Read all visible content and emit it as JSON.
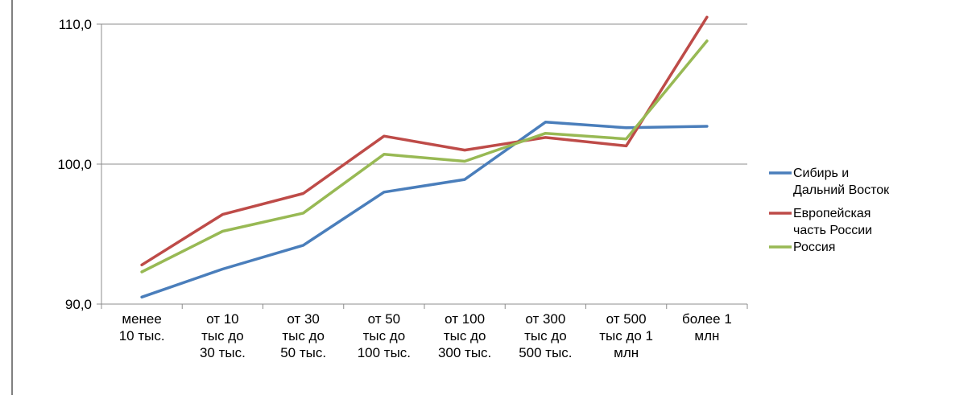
{
  "colors": {
    "background": "#ffffff",
    "grid": "#8c8c8c",
    "axis": "#8c8c8c"
  },
  "chart_data": {
    "type": "line",
    "title": "",
    "xlabel": "",
    "ylabel": "",
    "ylim": [
      90,
      110
    ],
    "yticks": [
      "90,0",
      "100,0",
      "110,0"
    ],
    "grid": "horizontal major lines",
    "legend_position": "right",
    "categories": [
      [
        "менее",
        "10 тыс."
      ],
      [
        "от 10",
        "тыс до",
        "30 тыс."
      ],
      [
        "от 30",
        "тыс до",
        "50 тыс."
      ],
      [
        "от 50",
        "тыс до",
        "100 тыс."
      ],
      [
        "от 100",
        "тыс до",
        "300 тыс."
      ],
      [
        "от 300",
        "тыс до",
        "500 тыс."
      ],
      [
        "от 500",
        "тыс до 1",
        "млн"
      ],
      [
        "более 1",
        "млн"
      ]
    ],
    "series": [
      {
        "name": [
          "Сибирь и",
          "Дальний Восток"
        ],
        "color": "#4a7ebb",
        "values": [
          90.5,
          92.5,
          94.2,
          98.0,
          98.9,
          103.0,
          102.6,
          102.7
        ]
      },
      {
        "name": [
          "Европейская",
          "часть России"
        ],
        "color": "#be4b48",
        "values": [
          92.8,
          96.4,
          97.9,
          102.0,
          101.0,
          101.9,
          101.3,
          110.5
        ]
      },
      {
        "name": [
          "Россия"
        ],
        "color": "#98b954",
        "values": [
          92.3,
          95.2,
          96.5,
          100.7,
          100.2,
          102.2,
          101.8,
          108.8
        ]
      }
    ]
  }
}
